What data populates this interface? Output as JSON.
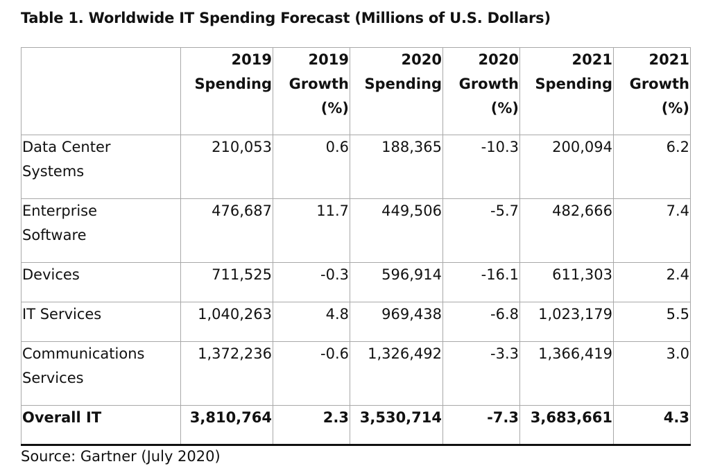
{
  "title": "Table 1. Worldwide IT Spending Forecast (Millions of U.S. Dollars)",
  "columns": [
    [
      "2019",
      "Spending"
    ],
    [
      "2019",
      "Growth",
      "(%)"
    ],
    [
      "2020",
      "Spending"
    ],
    [
      "2020",
      "Growth",
      "(%)"
    ],
    [
      "2021",
      "Spending"
    ],
    [
      "2021",
      "Growth",
      "(%)"
    ]
  ],
  "rows": [
    {
      "label": [
        "Data Center",
        "Systems"
      ],
      "values": [
        "210,053",
        "0.6",
        "188,365",
        "-10.3",
        "200,094",
        "6.2"
      ]
    },
    {
      "label": [
        "Enterprise",
        "Software"
      ],
      "values": [
        "476,687",
        "11.7",
        "449,506",
        "-5.7",
        "482,666",
        "7.4"
      ]
    },
    {
      "label": [
        "Devices"
      ],
      "values": [
        "711,525",
        "-0.3",
        "596,914",
        "-16.1",
        "611,303",
        "2.4"
      ]
    },
    {
      "label": [
        "IT Services"
      ],
      "values": [
        "1,040,263",
        "4.8",
        "969,438",
        "-6.8",
        "1,023,179",
        "5.5"
      ]
    },
    {
      "label": [
        "Communications",
        "Services"
      ],
      "values": [
        "1,372,236",
        "-0.6",
        "1,326,492",
        "-3.3",
        "1,366,419",
        "3.0"
      ]
    }
  ],
  "total": {
    "label": "Overall IT",
    "values": [
      "3,810,764",
      "2.3",
      "3,530,714",
      "-7.3",
      "3,683,661",
      "4.3"
    ]
  },
  "source": "Source: Gartner (July 2020)"
}
